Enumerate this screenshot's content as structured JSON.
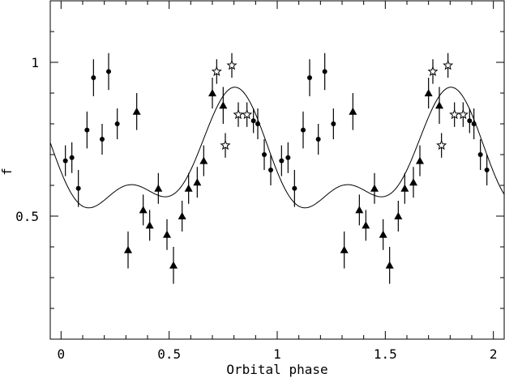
{
  "chart_data": {
    "type": "scatter",
    "title": "",
    "xlabel": "Orbital phase",
    "ylabel": "f",
    "xlim": [
      -0.05,
      2.05
    ],
    "ylim": [
      0.1,
      1.2
    ],
    "xticks": [
      {
        "value": 0,
        "label": "0"
      },
      {
        "value": 0.5,
        "label": "0.5"
      },
      {
        "value": 1,
        "label": "1"
      },
      {
        "value": 1.5,
        "label": "1.5"
      },
      {
        "value": 2,
        "label": "2"
      }
    ],
    "yticks": [
      {
        "value": 0.5,
        "label": "0.5"
      },
      {
        "value": 1,
        "label": "1"
      }
    ],
    "series": [
      {
        "marker": "circle",
        "points": [
          {
            "x": 0.02,
            "y": 0.68,
            "err": 0.05
          },
          {
            "x": 0.05,
            "y": 0.69,
            "err": 0.05
          },
          {
            "x": 0.08,
            "y": 0.59,
            "err": 0.06
          },
          {
            "x": 0.12,
            "y": 0.78,
            "err": 0.06
          },
          {
            "x": 0.15,
            "y": 0.95,
            "err": 0.06
          },
          {
            "x": 0.19,
            "y": 0.75,
            "err": 0.05
          },
          {
            "x": 0.22,
            "y": 0.97,
            "err": 0.06
          },
          {
            "x": 0.26,
            "y": 0.8,
            "err": 0.05
          },
          {
            "x": 0.89,
            "y": 0.81,
            "err": 0.04
          },
          {
            "x": 0.91,
            "y": 0.8,
            "err": 0.05
          },
          {
            "x": 0.94,
            "y": 0.7,
            "err": 0.05
          },
          {
            "x": 0.97,
            "y": 0.65,
            "err": 0.05
          },
          {
            "x": 1.02,
            "y": 0.68,
            "err": 0.05
          },
          {
            "x": 1.05,
            "y": 0.69,
            "err": 0.05
          },
          {
            "x": 1.08,
            "y": 0.59,
            "err": 0.06
          },
          {
            "x": 1.12,
            "y": 0.78,
            "err": 0.06
          },
          {
            "x": 1.15,
            "y": 0.95,
            "err": 0.06
          },
          {
            "x": 1.19,
            "y": 0.75,
            "err": 0.05
          },
          {
            "x": 1.22,
            "y": 0.97,
            "err": 0.06
          },
          {
            "x": 1.26,
            "y": 0.8,
            "err": 0.05
          },
          {
            "x": 1.89,
            "y": 0.81,
            "err": 0.04
          },
          {
            "x": 1.91,
            "y": 0.8,
            "err": 0.05
          },
          {
            "x": 1.94,
            "y": 0.7,
            "err": 0.05
          },
          {
            "x": 1.97,
            "y": 0.65,
            "err": 0.05
          }
        ]
      },
      {
        "marker": "triangle",
        "points": [
          {
            "x": 0.31,
            "y": 0.39,
            "err": 0.06
          },
          {
            "x": 0.35,
            "y": 0.84,
            "err": 0.06
          },
          {
            "x": 0.38,
            "y": 0.52,
            "err": 0.05
          },
          {
            "x": 0.41,
            "y": 0.47,
            "err": 0.05
          },
          {
            "x": 0.45,
            "y": 0.59,
            "err": 0.05
          },
          {
            "x": 0.49,
            "y": 0.44,
            "err": 0.05
          },
          {
            "x": 0.52,
            "y": 0.34,
            "err": 0.06
          },
          {
            "x": 0.56,
            "y": 0.5,
            "err": 0.05
          },
          {
            "x": 0.59,
            "y": 0.59,
            "err": 0.05
          },
          {
            "x": 0.63,
            "y": 0.61,
            "err": 0.05
          },
          {
            "x": 0.66,
            "y": 0.68,
            "err": 0.05
          },
          {
            "x": 0.7,
            "y": 0.9,
            "err": 0.05
          },
          {
            "x": 0.75,
            "y": 0.86,
            "err": 0.06
          },
          {
            "x": 1.31,
            "y": 0.39,
            "err": 0.06
          },
          {
            "x": 1.35,
            "y": 0.84,
            "err": 0.06
          },
          {
            "x": 1.38,
            "y": 0.52,
            "err": 0.05
          },
          {
            "x": 1.41,
            "y": 0.47,
            "err": 0.05
          },
          {
            "x": 1.45,
            "y": 0.59,
            "err": 0.05
          },
          {
            "x": 1.49,
            "y": 0.44,
            "err": 0.05
          },
          {
            "x": 1.52,
            "y": 0.34,
            "err": 0.06
          },
          {
            "x": 1.56,
            "y": 0.5,
            "err": 0.05
          },
          {
            "x": 1.59,
            "y": 0.59,
            "err": 0.05
          },
          {
            "x": 1.63,
            "y": 0.61,
            "err": 0.05
          },
          {
            "x": 1.66,
            "y": 0.68,
            "err": 0.05
          },
          {
            "x": 1.7,
            "y": 0.9,
            "err": 0.05
          },
          {
            "x": 1.75,
            "y": 0.86,
            "err": 0.06
          }
        ]
      },
      {
        "marker": "star",
        "points": [
          {
            "x": 0.72,
            "y": 0.97,
            "err": 0.04
          },
          {
            "x": 0.76,
            "y": 0.73,
            "err": 0.04
          },
          {
            "x": 0.79,
            "y": 0.99,
            "err": 0.04
          },
          {
            "x": 0.82,
            "y": 0.83,
            "err": 0.04
          },
          {
            "x": 0.86,
            "y": 0.83,
            "err": 0.04
          },
          {
            "x": 1.72,
            "y": 0.97,
            "err": 0.04
          },
          {
            "x": 1.76,
            "y": 0.73,
            "err": 0.04
          },
          {
            "x": 1.79,
            "y": 0.99,
            "err": 0.04
          },
          {
            "x": 1.82,
            "y": 0.83,
            "err": 0.04
          },
          {
            "x": 1.86,
            "y": 0.83,
            "err": 0.04
          }
        ]
      }
    ],
    "model_curve": {
      "type": "line",
      "mean": 0.67,
      "amp1": 0.16,
      "phase1": 0.79,
      "amp2": 0.09,
      "phase2_offset": 0.02
    }
  }
}
